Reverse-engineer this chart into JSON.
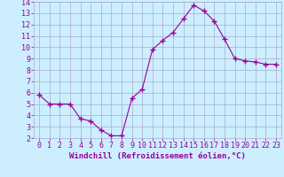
{
  "x": [
    0,
    1,
    2,
    3,
    4,
    5,
    6,
    7,
    8,
    9,
    10,
    11,
    12,
    13,
    14,
    15,
    16,
    17,
    18,
    19,
    20,
    21,
    22,
    23
  ],
  "y": [
    5.8,
    5.0,
    5.0,
    5.0,
    3.7,
    3.5,
    2.7,
    2.2,
    2.2,
    5.5,
    6.3,
    9.8,
    10.6,
    11.3,
    12.5,
    13.7,
    13.2,
    12.3,
    10.7,
    9.0,
    8.8,
    8.7,
    8.5,
    8.5
  ],
  "line_color": "#990099",
  "marker": "+",
  "marker_size": 4,
  "xlabel": "Windchill (Refroidissement éolien,°C)",
  "xlim_min": -0.5,
  "xlim_max": 23.5,
  "ylim": [
    2,
    14
  ],
  "yticks": [
    2,
    3,
    4,
    5,
    6,
    7,
    8,
    9,
    10,
    11,
    12,
    13,
    14
  ],
  "xticks": [
    0,
    1,
    2,
    3,
    4,
    5,
    6,
    7,
    8,
    9,
    10,
    11,
    12,
    13,
    14,
    15,
    16,
    17,
    18,
    19,
    20,
    21,
    22,
    23
  ],
  "bg_color": "#cceeff",
  "grid_color": "#aaaacc",
  "line_and_text_color": "#990099",
  "tick_fontsize": 6,
  "xlabel_fontsize": 6.5
}
